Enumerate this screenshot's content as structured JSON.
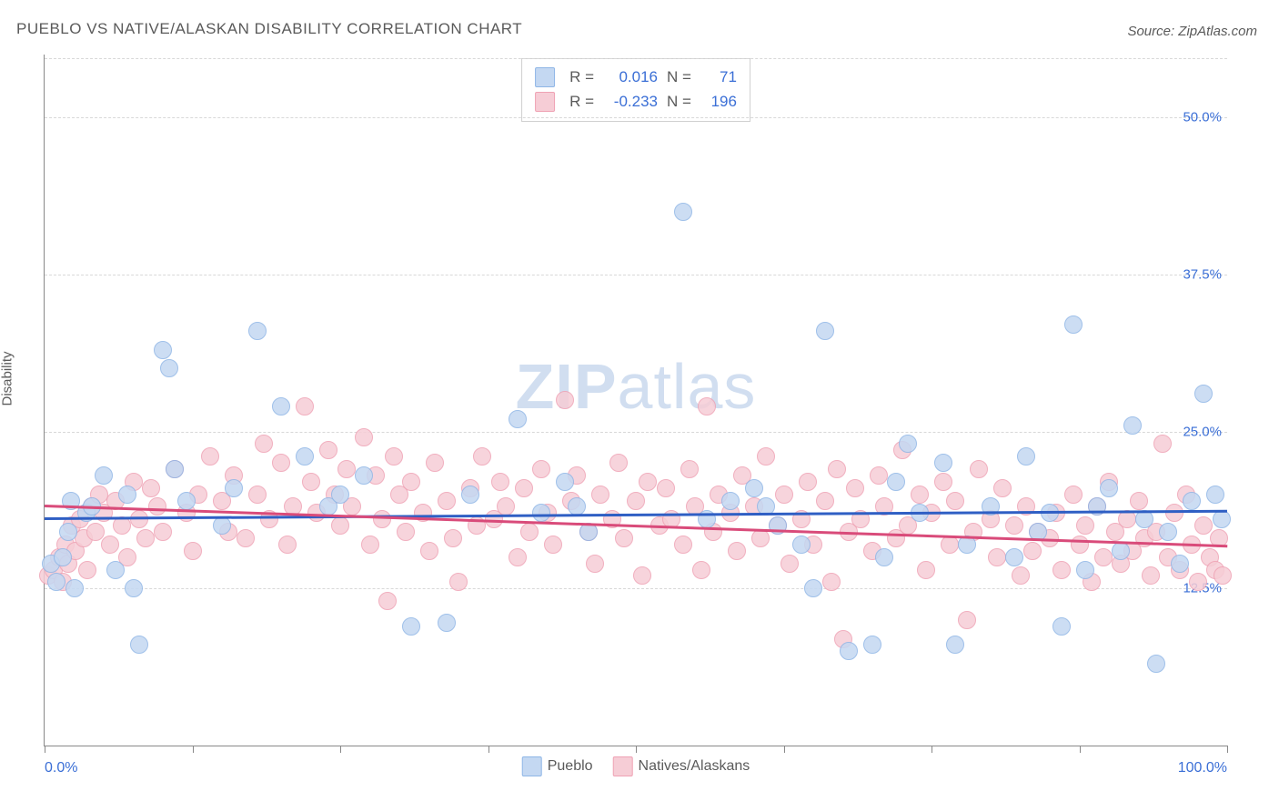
{
  "title": "PUEBLO VS NATIVE/ALASKAN DISABILITY CORRELATION CHART",
  "source": "Source: ZipAtlas.com",
  "ylabel": "Disability",
  "watermark_bold": "ZIP",
  "watermark_rest": "atlas",
  "chart": {
    "type": "scatter",
    "xlim": [
      0,
      100
    ],
    "ylim": [
      0,
      55
    ],
    "y_gridlines": [
      12.5,
      25.0,
      37.5,
      50.0
    ],
    "y_tick_labels": [
      "12.5%",
      "25.0%",
      "37.5%",
      "50.0%"
    ],
    "x_ticks": [
      0,
      12.5,
      25,
      37.5,
      50,
      62.5,
      75,
      87.5,
      100
    ],
    "x_left_label": "0.0%",
    "x_right_label": "100.0%",
    "grid_color": "#d8d8d8",
    "axis_color": "#888888",
    "background_color": "#ffffff",
    "tick_label_color": "#3b6fd6",
    "point_radius": 9,
    "point_stroke_width": 1.5,
    "trend_width": 3,
    "title_fontsize": 17,
    "label_fontsize": 15
  },
  "series": [
    {
      "name": "Pueblo",
      "fill": "#c4d8f2",
      "stroke": "#8fb6e6",
      "trend_color": "#2f5fc4",
      "R": "0.016",
      "N": "71",
      "trend": {
        "y_at_x0": 18.2,
        "y_at_x100": 18.8
      },
      "points": [
        [
          0.5,
          14.5
        ],
        [
          1.0,
          13.0
        ],
        [
          1.5,
          15.0
        ],
        [
          2.0,
          17.0
        ],
        [
          2.2,
          19.5
        ],
        [
          2.5,
          12.5
        ],
        [
          3.5,
          18.5
        ],
        [
          4.0,
          19.0
        ],
        [
          5.0,
          21.5
        ],
        [
          6.0,
          14.0
        ],
        [
          7.0,
          20.0
        ],
        [
          7.5,
          12.5
        ],
        [
          8.0,
          8.0
        ],
        [
          10.0,
          31.5
        ],
        [
          10.5,
          30.0
        ],
        [
          11.0,
          22.0
        ],
        [
          12.0,
          19.5
        ],
        [
          15.0,
          17.5
        ],
        [
          16.0,
          20.5
        ],
        [
          18.0,
          33.0
        ],
        [
          20.0,
          27.0
        ],
        [
          22.0,
          23.0
        ],
        [
          24.0,
          19.0
        ],
        [
          25.0,
          20.0
        ],
        [
          27.0,
          21.5
        ],
        [
          31.0,
          9.5
        ],
        [
          34.0,
          9.8
        ],
        [
          36.0,
          20.0
        ],
        [
          40.0,
          26.0
        ],
        [
          42.0,
          18.5
        ],
        [
          44.0,
          21.0
        ],
        [
          45.0,
          19.0
        ],
        [
          46.0,
          17.0
        ],
        [
          54.0,
          42.5
        ],
        [
          56.0,
          18.0
        ],
        [
          58.0,
          19.5
        ],
        [
          60.0,
          20.5
        ],
        [
          61.0,
          19.0
        ],
        [
          62.0,
          17.5
        ],
        [
          64.0,
          16.0
        ],
        [
          65.0,
          12.5
        ],
        [
          66.0,
          33.0
        ],
        [
          68.0,
          7.5
        ],
        [
          70.0,
          8.0
        ],
        [
          71.0,
          15.0
        ],
        [
          72.0,
          21.0
        ],
        [
          73.0,
          24.0
        ],
        [
          74.0,
          18.5
        ],
        [
          76.0,
          22.5
        ],
        [
          77.0,
          8.0
        ],
        [
          78.0,
          16.0
        ],
        [
          80.0,
          19.0
        ],
        [
          82.0,
          15.0
        ],
        [
          83.0,
          23.0
        ],
        [
          84.0,
          17.0
        ],
        [
          85.0,
          18.5
        ],
        [
          86.0,
          9.5
        ],
        [
          87.0,
          33.5
        ],
        [
          88.0,
          14.0
        ],
        [
          89.0,
          19.0
        ],
        [
          90.0,
          20.5
        ],
        [
          91.0,
          15.5
        ],
        [
          92.0,
          25.5
        ],
        [
          93.0,
          18.0
        ],
        [
          94.0,
          6.5
        ],
        [
          95.0,
          17.0
        ],
        [
          96.0,
          14.5
        ],
        [
          97.0,
          19.5
        ],
        [
          98.0,
          28.0
        ],
        [
          99.0,
          20.0
        ],
        [
          99.5,
          18.0
        ]
      ]
    },
    {
      "name": "Natives/Alaskans",
      "fill": "#f6cdd6",
      "stroke": "#efa2b4",
      "trend_color": "#d94b7a",
      "R": "-0.233",
      "N": "196",
      "trend": {
        "y_at_x0": 19.2,
        "y_at_x100": 16.0
      },
      "points": [
        [
          0.3,
          13.5
        ],
        [
          0.8,
          14.0
        ],
        [
          1.2,
          15.0
        ],
        [
          1.5,
          13.0
        ],
        [
          1.8,
          16.0
        ],
        [
          2.0,
          14.5
        ],
        [
          2.3,
          17.5
        ],
        [
          2.6,
          15.5
        ],
        [
          3.0,
          18.0
        ],
        [
          3.3,
          16.5
        ],
        [
          3.6,
          14.0
        ],
        [
          4.0,
          19.0
        ],
        [
          4.3,
          17.0
        ],
        [
          4.6,
          20.0
        ],
        [
          5.0,
          18.5
        ],
        [
          5.5,
          16.0
        ],
        [
          6.0,
          19.5
        ],
        [
          6.5,
          17.5
        ],
        [
          7.0,
          15.0
        ],
        [
          7.5,
          21.0
        ],
        [
          8.0,
          18.0
        ],
        [
          8.5,
          16.5
        ],
        [
          9.0,
          20.5
        ],
        [
          9.5,
          19.0
        ],
        [
          10.0,
          17.0
        ],
        [
          11.0,
          22.0
        ],
        [
          12.0,
          18.5
        ],
        [
          12.5,
          15.5
        ],
        [
          13.0,
          20.0
        ],
        [
          14.0,
          23.0
        ],
        [
          15.0,
          19.5
        ],
        [
          15.5,
          17.0
        ],
        [
          16.0,
          21.5
        ],
        [
          17.0,
          16.5
        ],
        [
          18.0,
          20.0
        ],
        [
          18.5,
          24.0
        ],
        [
          19.0,
          18.0
        ],
        [
          20.0,
          22.5
        ],
        [
          20.5,
          16.0
        ],
        [
          21.0,
          19.0
        ],
        [
          22.0,
          27.0
        ],
        [
          22.5,
          21.0
        ],
        [
          23.0,
          18.5
        ],
        [
          24.0,
          23.5
        ],
        [
          24.5,
          20.0
        ],
        [
          25.0,
          17.5
        ],
        [
          25.5,
          22.0
        ],
        [
          26.0,
          19.0
        ],
        [
          27.0,
          24.5
        ],
        [
          27.5,
          16.0
        ],
        [
          28.0,
          21.5
        ],
        [
          28.5,
          18.0
        ],
        [
          29.0,
          11.5
        ],
        [
          29.5,
          23.0
        ],
        [
          30.0,
          20.0
        ],
        [
          30.5,
          17.0
        ],
        [
          31.0,
          21.0
        ],
        [
          32.0,
          18.5
        ],
        [
          32.5,
          15.5
        ],
        [
          33.0,
          22.5
        ],
        [
          34.0,
          19.5
        ],
        [
          34.5,
          16.5
        ],
        [
          35.0,
          13.0
        ],
        [
          36.0,
          20.5
        ],
        [
          36.5,
          17.5
        ],
        [
          37.0,
          23.0
        ],
        [
          38.0,
          18.0
        ],
        [
          38.5,
          21.0
        ],
        [
          39.0,
          19.0
        ],
        [
          40.0,
          15.0
        ],
        [
          40.5,
          20.5
        ],
        [
          41.0,
          17.0
        ],
        [
          42.0,
          22.0
        ],
        [
          42.5,
          18.5
        ],
        [
          43.0,
          16.0
        ],
        [
          44.0,
          27.5
        ],
        [
          44.5,
          19.5
        ],
        [
          45.0,
          21.5
        ],
        [
          46.0,
          17.0
        ],
        [
          46.5,
          14.5
        ],
        [
          47.0,
          20.0
        ],
        [
          48.0,
          18.0
        ],
        [
          48.5,
          22.5
        ],
        [
          49.0,
          16.5
        ],
        [
          50.0,
          19.5
        ],
        [
          50.5,
          13.5
        ],
        [
          51.0,
          21.0
        ],
        [
          52.0,
          17.5
        ],
        [
          52.5,
          20.5
        ],
        [
          53.0,
          18.0
        ],
        [
          54.0,
          16.0
        ],
        [
          54.5,
          22.0
        ],
        [
          55.0,
          19.0
        ],
        [
          55.5,
          14.0
        ],
        [
          56.0,
          27.0
        ],
        [
          56.5,
          17.0
        ],
        [
          57.0,
          20.0
        ],
        [
          58.0,
          18.5
        ],
        [
          58.5,
          15.5
        ],
        [
          59.0,
          21.5
        ],
        [
          60.0,
          19.0
        ],
        [
          60.5,
          16.5
        ],
        [
          61.0,
          23.0
        ],
        [
          62.0,
          17.5
        ],
        [
          62.5,
          20.0
        ],
        [
          63.0,
          14.5
        ],
        [
          64.0,
          18.0
        ],
        [
          64.5,
          21.0
        ],
        [
          65.0,
          16.0
        ],
        [
          66.0,
          19.5
        ],
        [
          66.5,
          13.0
        ],
        [
          67.0,
          22.0
        ],
        [
          67.5,
          8.5
        ],
        [
          68.0,
          17.0
        ],
        [
          68.5,
          20.5
        ],
        [
          69.0,
          18.0
        ],
        [
          70.0,
          15.5
        ],
        [
          70.5,
          21.5
        ],
        [
          71.0,
          19.0
        ],
        [
          72.0,
          16.5
        ],
        [
          72.5,
          23.5
        ],
        [
          73.0,
          17.5
        ],
        [
          74.0,
          20.0
        ],
        [
          74.5,
          14.0
        ],
        [
          75.0,
          18.5
        ],
        [
          76.0,
          21.0
        ],
        [
          76.5,
          16.0
        ],
        [
          77.0,
          19.5
        ],
        [
          78.0,
          10.0
        ],
        [
          78.5,
          17.0
        ],
        [
          79.0,
          22.0
        ],
        [
          80.0,
          18.0
        ],
        [
          80.5,
          15.0
        ],
        [
          81.0,
          20.5
        ],
        [
          82.0,
          17.5
        ],
        [
          82.5,
          13.5
        ],
        [
          83.0,
          19.0
        ],
        [
          83.5,
          15.5
        ],
        [
          84.0,
          17.0
        ],
        [
          85.0,
          16.5
        ],
        [
          85.5,
          18.5
        ],
        [
          86.0,
          14.0
        ],
        [
          87.0,
          20.0
        ],
        [
          87.5,
          16.0
        ],
        [
          88.0,
          17.5
        ],
        [
          88.5,
          13.0
        ],
        [
          89.0,
          19.0
        ],
        [
          89.5,
          15.0
        ],
        [
          90.0,
          21.0
        ],
        [
          90.5,
          17.0
        ],
        [
          91.0,
          14.5
        ],
        [
          91.5,
          18.0
        ],
        [
          92.0,
          15.5
        ],
        [
          92.5,
          19.5
        ],
        [
          93.0,
          16.5
        ],
        [
          93.5,
          13.5
        ],
        [
          94.0,
          17.0
        ],
        [
          94.5,
          24.0
        ],
        [
          95.0,
          15.0
        ],
        [
          95.5,
          18.5
        ],
        [
          96.0,
          14.0
        ],
        [
          96.5,
          20.0
        ],
        [
          97.0,
          16.0
        ],
        [
          97.5,
          13.0
        ],
        [
          98.0,
          17.5
        ],
        [
          98.5,
          15.0
        ],
        [
          99.0,
          14.0
        ],
        [
          99.3,
          16.5
        ],
        [
          99.6,
          13.5
        ]
      ]
    }
  ],
  "legend_top": {
    "r_label": "R =",
    "n_label": "N ="
  },
  "legend_bottom": {
    "items": [
      "Pueblo",
      "Natives/Alaskans"
    ]
  }
}
